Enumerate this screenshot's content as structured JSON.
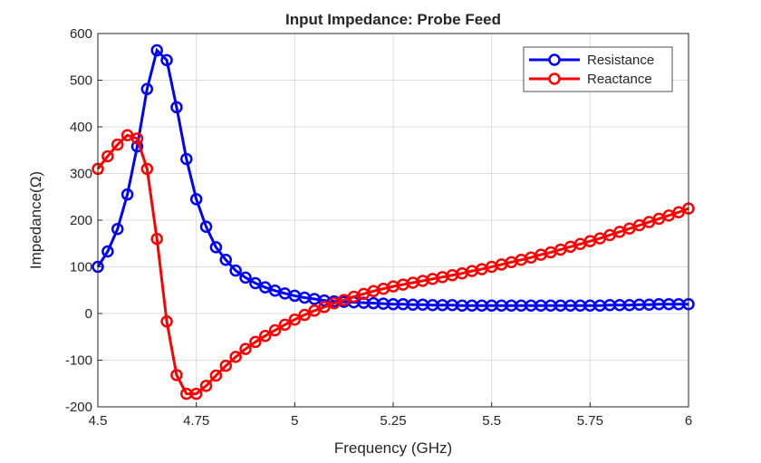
{
  "chart_data": {
    "type": "line",
    "title": "Input Impedance: Probe Feed",
    "xlabel": "Frequency (GHz)",
    "ylabel": "Impedance(Ω)",
    "xlim": [
      4.5,
      6
    ],
    "ylim": [
      -200,
      600
    ],
    "xticks": [
      4.5,
      4.75,
      5,
      5.25,
      5.5,
      5.75,
      6
    ],
    "xtick_labels": [
      "4.5",
      "4.75",
      "5",
      "5.25",
      "5.5",
      "5.75",
      "6"
    ],
    "yticks": [
      -200,
      -100,
      0,
      100,
      200,
      300,
      400,
      500,
      600
    ],
    "ytick_labels": [
      "-200",
      "-100",
      "0",
      "100",
      "200",
      "300",
      "400",
      "500",
      "600"
    ],
    "grid": true,
    "legend_position": "top-right",
    "x": {
      "start": 4.5,
      "step": 0.025,
      "count": 61
    },
    "series": [
      {
        "name": "Resistance",
        "color": "#0000ff",
        "marker": "circle",
        "values": [
          100,
          133,
          181,
          255,
          358,
          481,
          564,
          543,
          442,
          331,
          245,
          186,
          142,
          115,
          92,
          77,
          65,
          56,
          49,
          43,
          38,
          34,
          31,
          28,
          26,
          25,
          24,
          23,
          22,
          21,
          20,
          20,
          19,
          19,
          18,
          18,
          18,
          17,
          17,
          17,
          17,
          17,
          17,
          17,
          17,
          17,
          17,
          17,
          17,
          17,
          17,
          17,
          18,
          18,
          18,
          19,
          19,
          20,
          20,
          20,
          20
        ]
      },
      {
        "name": "Reactance",
        "color": "#ff0000",
        "marker": "circle",
        "values": [
          310,
          337,
          362,
          382,
          375,
          310,
          160,
          -17,
          -132,
          -172,
          -172,
          -155,
          -133,
          -112,
          -93,
          -76,
          -61,
          -48,
          -36,
          -24,
          -13,
          -3,
          6,
          14,
          22,
          29,
          36,
          42,
          48,
          53,
          58,
          62,
          66,
          70,
          74,
          78,
          82,
          86,
          91,
          95,
          100,
          105,
          110,
          115,
          120,
          126,
          131,
          137,
          143,
          149,
          155,
          161,
          168,
          175,
          182,
          189,
          196,
          203,
          210,
          217,
          225
        ]
      }
    ]
  }
}
